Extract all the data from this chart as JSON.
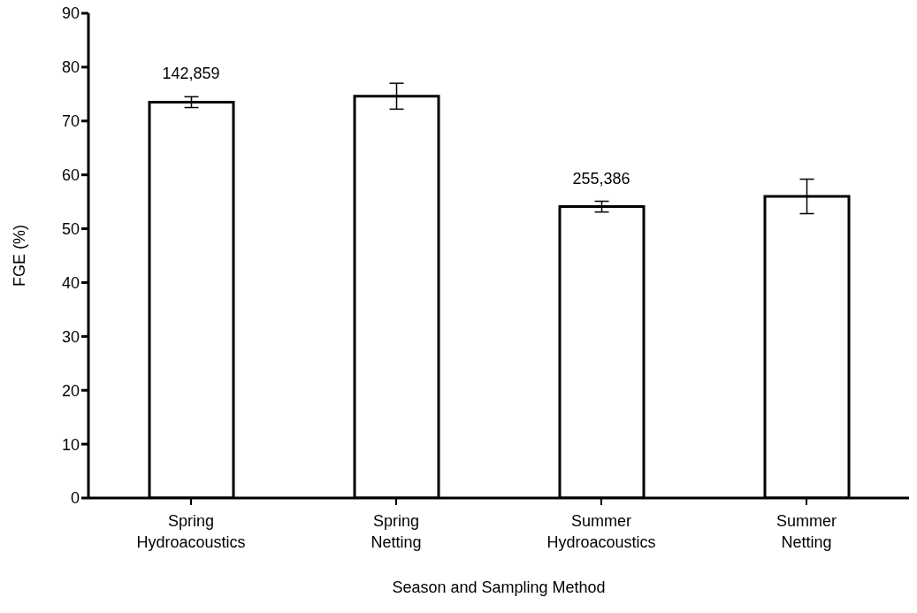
{
  "chart_data": {
    "type": "bar",
    "xlabel": "Season and Sampling Method",
    "ylabel": "FGE (%)",
    "categories": [
      "Spring Hydroacoustics",
      "Spring Netting",
      "Summer Hydroacoustics",
      "Summer Netting"
    ],
    "values": [
      73.5,
      74.6,
      54.1,
      56.0
    ],
    "errors": [
      1.0,
      2.4,
      1.0,
      3.2
    ],
    "color": "#ffffff",
    "ylim": [
      0,
      90
    ],
    "yticks": [
      0,
      10,
      20,
      30,
      40,
      50,
      60,
      70,
      80,
      90
    ],
    "grid": false,
    "legend": false,
    "annotations": [
      {
        "text": "142,859",
        "x": "Spring Hydroacoustics",
        "y": 73.5
      },
      {
        "text": "255,386",
        "x": "Summer Hydroacoustics",
        "y": 54.1
      }
    ]
  }
}
